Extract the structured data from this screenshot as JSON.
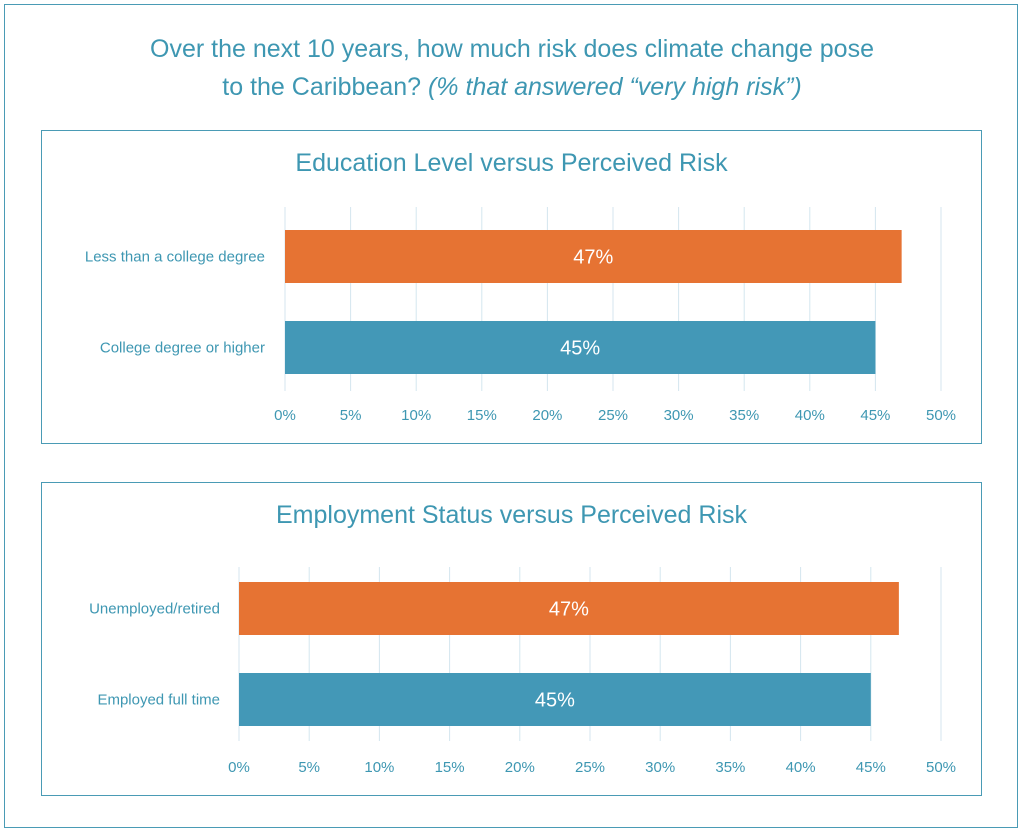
{
  "title": {
    "line1": "Over the next 10 years, how much risk does climate change pose",
    "line2_main": "to the Caribbean? ",
    "line2_italic": "(% that answered “very high risk”)"
  },
  "colors": {
    "orange": "#e67333",
    "teal": "#4398b7",
    "text": "#3e97b2",
    "border": "#4a9bb5"
  },
  "chart_data": [
    {
      "type": "bar",
      "orientation": "horizontal",
      "title": "Education Level versus Perceived Risk",
      "categories": [
        "Less than a college degree",
        "College degree or higher"
      ],
      "values": [
        47,
        45
      ],
      "data_labels": [
        "47%",
        "45%"
      ],
      "bar_colors": [
        "#e67333",
        "#4398b7"
      ],
      "xlim": [
        0,
        50
      ],
      "xticks": [
        "0%",
        "5%",
        "10%",
        "15%",
        "20%",
        "25%",
        "30%",
        "35%",
        "40%",
        "45%",
        "50%"
      ],
      "grid": true
    },
    {
      "type": "bar",
      "orientation": "horizontal",
      "title": "Employment Status versus Perceived Risk",
      "categories": [
        "Unemployed/retired",
        "Employed full time"
      ],
      "values": [
        47,
        45
      ],
      "data_labels": [
        "47%",
        "45%"
      ],
      "bar_colors": [
        "#e67333",
        "#4398b7"
      ],
      "xlim": [
        0,
        50
      ],
      "xticks": [
        "0%",
        "5%",
        "10%",
        "15%",
        "20%",
        "25%",
        "30%",
        "35%",
        "40%",
        "45%",
        "50%"
      ],
      "grid": true
    }
  ]
}
